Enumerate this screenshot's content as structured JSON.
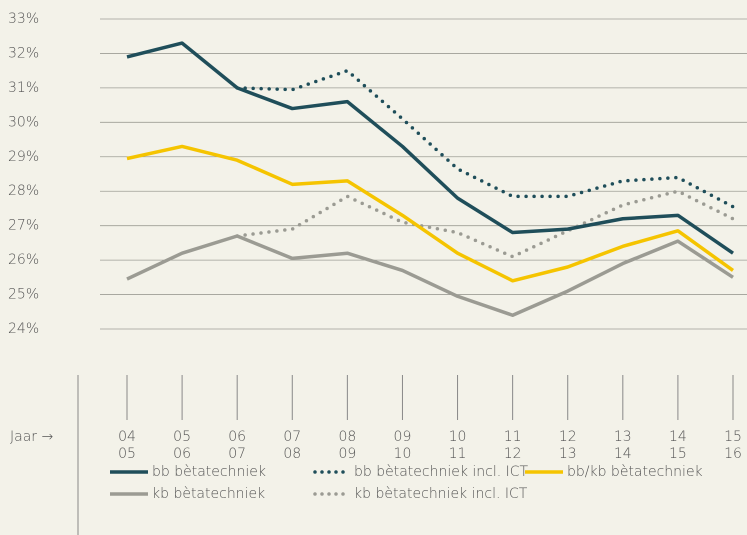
{
  "chart_data": {
    "type": "line",
    "x_label": "Jaar →",
    "categories": [
      [
        "04",
        "05"
      ],
      [
        "05",
        "06"
      ],
      [
        "06",
        "07"
      ],
      [
        "07",
        "08"
      ],
      [
        "08",
        "09"
      ],
      [
        "09",
        "10"
      ],
      [
        "10",
        "11"
      ],
      [
        "11",
        "12"
      ],
      [
        "12",
        "13"
      ],
      [
        "13",
        "14"
      ],
      [
        "14",
        "15"
      ],
      [
        "15",
        "16"
      ]
    ],
    "ylim": [
      24,
      33
    ],
    "yticks": [
      {
        "value": 24,
        "label": "24%"
      },
      {
        "value": 25,
        "label": "25%"
      },
      {
        "value": 26,
        "label": "26%"
      },
      {
        "value": 27,
        "label": "27%"
      },
      {
        "value": 28,
        "label": "28%"
      },
      {
        "value": 29,
        "label": "29%"
      },
      {
        "value": 30,
        "label": "30%"
      },
      {
        "value": 31,
        "label": "31%"
      },
      {
        "value": 32,
        "label": "32%"
      },
      {
        "value": 33,
        "label": "33%"
      }
    ],
    "grid": true,
    "series": [
      {
        "name": "bb bètatechniek",
        "color": "#1f4e5a",
        "dash": false,
        "values": [
          31.9,
          32.3,
          31.0,
          30.4,
          30.6,
          29.3,
          27.8,
          26.8,
          26.9,
          27.2,
          27.3,
          26.2
        ]
      },
      {
        "name": "bb bètatechniek incl. ICT",
        "color": "#1f4e5a",
        "dash": true,
        "values": [
          null,
          null,
          31.0,
          30.95,
          31.5,
          30.1,
          28.65,
          27.85,
          27.85,
          28.3,
          28.4,
          27.55
        ]
      },
      {
        "name": "bb/kb bètatechniek",
        "color": "#f5c400",
        "dash": false,
        "values": [
          28.95,
          29.3,
          28.9,
          28.2,
          28.3,
          27.3,
          26.2,
          25.4,
          25.8,
          26.4,
          26.85,
          25.7
        ]
      },
      {
        "name": "kb bètatechniek",
        "color": "#9b9b93",
        "dash": false,
        "values": [
          25.45,
          26.2,
          26.7,
          26.05,
          26.2,
          25.7,
          24.95,
          24.4,
          25.1,
          25.9,
          26.55,
          25.5
        ]
      },
      {
        "name": "kb bètatechniek incl. ICT",
        "color": "#9b9b93",
        "dash": true,
        "values": [
          null,
          null,
          26.7,
          26.9,
          27.85,
          27.1,
          26.8,
          26.1,
          26.85,
          27.6,
          28.0,
          27.2
        ]
      }
    ]
  }
}
